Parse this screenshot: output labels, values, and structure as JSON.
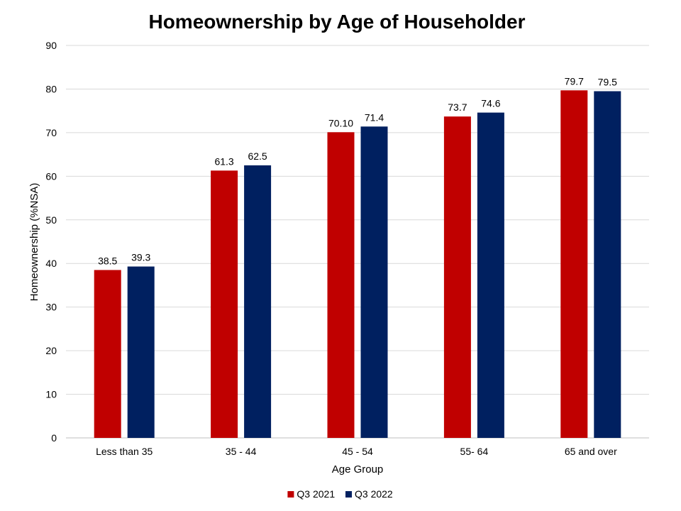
{
  "chart_data": {
    "type": "bar",
    "title": "Homeownership by Age of Householder",
    "xlabel": "Age Group",
    "ylabel": "Homeownership (%NSA)",
    "categories": [
      "Less than 35",
      "35 - 44",
      "45 - 54",
      "55- 64",
      "65 and over"
    ],
    "series": [
      {
        "name": "Q3 2021",
        "color": "#c00000",
        "values": [
          38.5,
          61.3,
          70.1,
          73.7,
          79.7
        ],
        "labels": [
          "38.5",
          "61.3",
          "70.10",
          "73.7",
          "79.7"
        ]
      },
      {
        "name": "Q3 2022",
        "color": "#002060",
        "values": [
          39.3,
          62.5,
          71.4,
          74.6,
          79.5
        ],
        "labels": [
          "39.3",
          "62.5",
          "71.4",
          "74.6",
          "79.5"
        ]
      }
    ],
    "ylim": [
      0,
      90
    ],
    "yticks": [
      "0",
      "10",
      "20",
      "30",
      "40",
      "50",
      "60",
      "70",
      "80",
      "90"
    ],
    "grid": true,
    "legend_position": "bottom"
  }
}
